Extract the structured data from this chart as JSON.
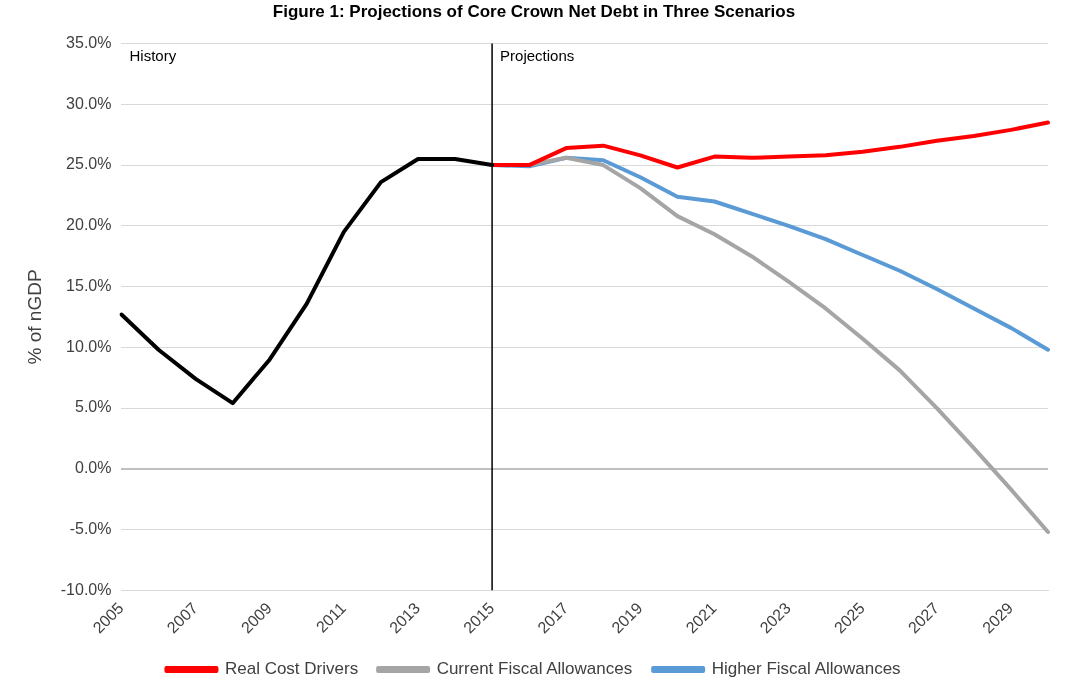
{
  "chart_data": {
    "type": "line",
    "title": "Figure 1: Projections of Core Crown Net Debt in Three Scenarios",
    "ylabel": "% of nGDP",
    "categories": [
      "2005",
      null,
      "2007",
      null,
      "2009",
      null,
      "2011",
      null,
      "2013",
      null,
      "2015",
      null,
      "2017",
      null,
      "2019",
      null,
      "2021",
      null,
      "2023",
      null,
      "2025",
      null,
      "2027",
      null,
      "2029",
      null
    ],
    "series": [
      {
        "color": "#000000",
        "values": [
          12.7,
          9.8,
          7.4,
          5.4,
          9.0,
          13.6,
          19.5,
          23.6,
          25.5,
          25.5,
          25.0,
          null,
          null,
          null,
          null,
          null,
          null,
          null,
          null,
          null,
          null,
          null,
          null,
          null,
          null,
          null
        ]
      },
      {
        "name": "Real Cost Drivers",
        "color": "#ff0000",
        "values": [
          null,
          null,
          null,
          null,
          null,
          null,
          null,
          null,
          null,
          null,
          25.0,
          25.0,
          26.4,
          26.6,
          25.8,
          24.8,
          25.7,
          25.6,
          25.7,
          25.8,
          26.1,
          26.5,
          27.0,
          27.4,
          27.9,
          28.5
        ]
      },
      {
        "name": "Current Fiscal Allowances",
        "color": "#a5a5a5",
        "values": [
          null,
          null,
          null,
          null,
          null,
          null,
          null,
          null,
          null,
          null,
          25.0,
          25.0,
          25.6,
          25.0,
          23.1,
          20.8,
          19.3,
          17.5,
          15.4,
          13.2,
          10.7,
          8.1,
          5.0,
          1.7,
          -1.7,
          -5.2
        ]
      },
      {
        "name": "Higher Fiscal Allowances",
        "color": "#5b9bd5",
        "values": [
          null,
          null,
          null,
          null,
          null,
          null,
          null,
          null,
          null,
          null,
          25.0,
          24.9,
          25.6,
          25.4,
          24.0,
          22.4,
          22.0,
          21.0,
          20.0,
          18.9,
          17.6,
          16.3,
          14.8,
          13.2,
          11.6,
          9.8
        ]
      }
    ],
    "ylim": [
      -10,
      35
    ],
    "yticks": [
      {
        "value": -10,
        "label": "-10.0%"
      },
      {
        "value": -5,
        "label": "-5.0%"
      },
      {
        "value": 0,
        "label": "0.0%"
      },
      {
        "value": 5,
        "label": "5.0%"
      },
      {
        "value": 10,
        "label": "10.0%"
      },
      {
        "value": 15,
        "label": "15.0%"
      },
      {
        "value": 20,
        "label": "20.0%"
      },
      {
        "value": 25,
        "label": "25.0%"
      },
      {
        "value": 30,
        "label": "30.0%"
      },
      {
        "value": 35,
        "label": "35.0%"
      }
    ],
    "ref_lines": [
      {
        "axis": "x",
        "value": "2015",
        "label": "Projections",
        "color": "#000000"
      }
    ],
    "annotations": [
      "History"
    ],
    "grid": "y",
    "legend": "bottom",
    "marker": "none",
    "line_style": "solid"
  }
}
